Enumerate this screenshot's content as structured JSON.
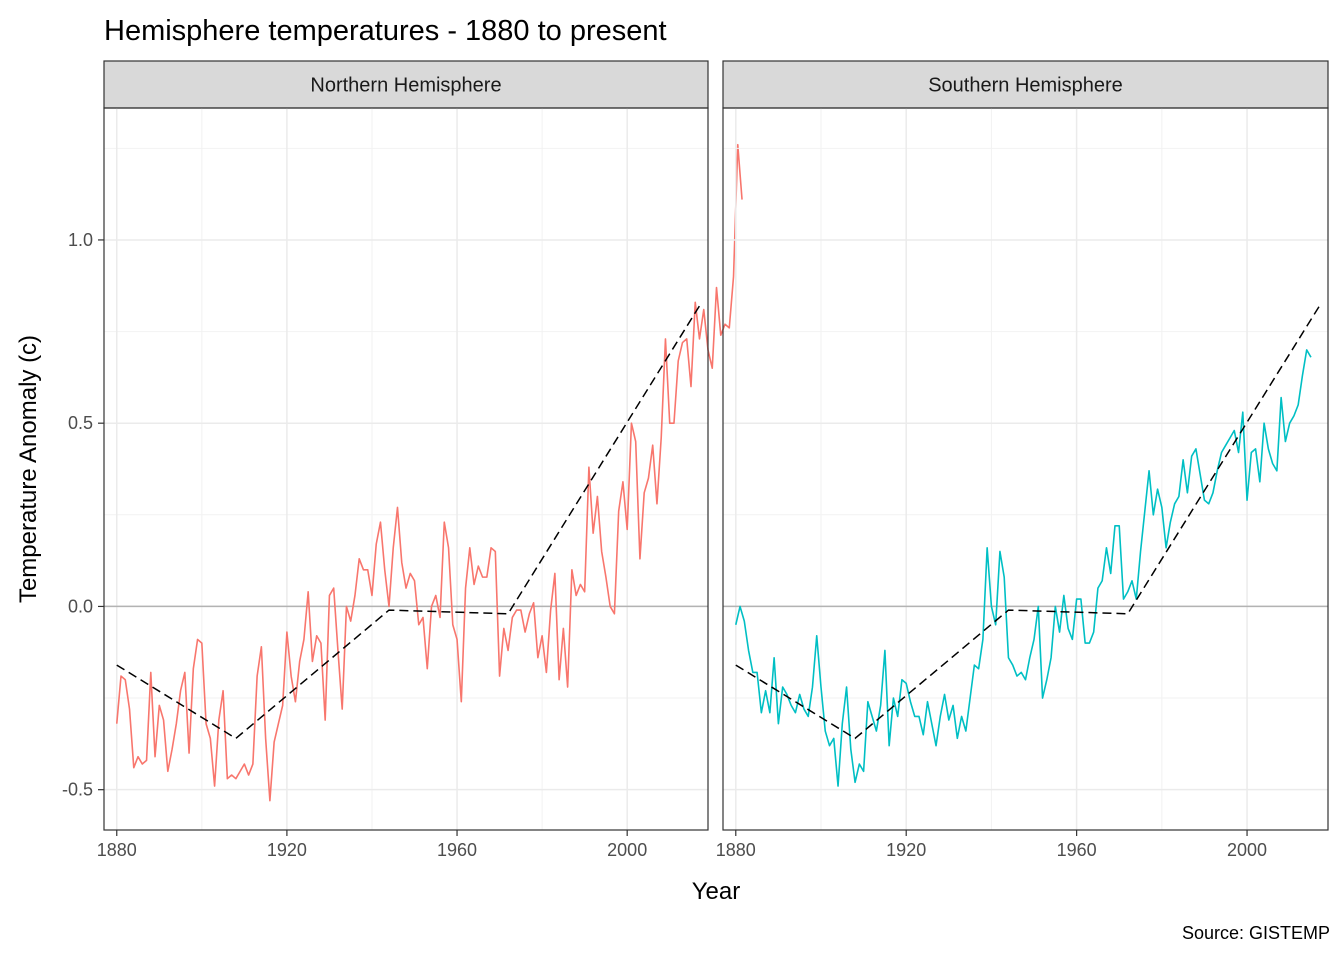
{
  "chart_data": {
    "type": "line",
    "title": "Hemisphere temperatures - 1880 to present",
    "xlabel": "Year",
    "ylabel": "Temperature Anomaly (c)",
    "caption": "Source: GISTEMP",
    "xlim": [
      1877,
      2019
    ],
    "ylim": [
      -0.61,
      1.36
    ],
    "x_ticks": [
      1880,
      1920,
      1960,
      2000
    ],
    "y_ticks": [
      -0.5,
      0.0,
      0.5,
      1.0
    ],
    "y_tick_labels": [
      "-0.5",
      "0.0",
      "0.5",
      "1.0"
    ],
    "grid": true,
    "reference_line_y": 0,
    "legend": "none",
    "facets": [
      {
        "label": "Northern Hemisphere",
        "color": "#F8766D",
        "x_start": 1880,
        "values": [
          -0.32,
          -0.19,
          -0.2,
          -0.28,
          -0.44,
          -0.41,
          -0.43,
          -0.42,
          -0.18,
          -0.41,
          -0.27,
          -0.31,
          -0.45,
          -0.39,
          -0.32,
          -0.23,
          -0.18,
          -0.4,
          -0.17,
          -0.09,
          -0.1,
          -0.32,
          -0.36,
          -0.49,
          -0.31,
          -0.23,
          -0.47,
          -0.46,
          -0.47,
          -0.45,
          -0.43,
          -0.46,
          -0.43,
          -0.19,
          -0.11,
          -0.36,
          -0.53,
          -0.37,
          -0.32,
          -0.27,
          -0.07,
          -0.19,
          -0.26,
          -0.15,
          -0.09,
          0.04,
          -0.15,
          -0.08,
          -0.1,
          -0.31,
          0.03,
          0.05,
          -0.12,
          -0.28,
          0.0,
          -0.04,
          0.03,
          0.13,
          0.1,
          0.1,
          0.03,
          0.17,
          0.23,
          0.1,
          0.0,
          0.16,
          0.27,
          0.12,
          0.05,
          0.09,
          0.07,
          -0.05,
          -0.03,
          -0.17,
          0.0,
          0.03,
          -0.03,
          0.23,
          0.16,
          -0.05,
          -0.09,
          -0.26,
          0.05,
          0.16,
          0.06,
          0.11,
          0.08,
          0.08,
          0.16,
          0.15,
          -0.19,
          -0.06,
          -0.12,
          -0.03,
          -0.01,
          -0.01,
          -0.07,
          -0.02,
          0.01,
          -0.14,
          -0.08,
          -0.18,
          -0.01,
          0.09,
          -0.2,
          -0.06,
          -0.22,
          0.1,
          0.03,
          0.06,
          0.04,
          0.38,
          0.2,
          0.3,
          0.15,
          0.08,
          0.0,
          -0.02,
          0.26,
          0.34,
          0.21,
          0.5,
          0.45,
          0.13,
          0.31,
          0.35,
          0.44,
          0.28,
          0.46,
          0.73,
          0.5,
          0.5,
          0.67,
          0.72,
          0.73,
          0.6,
          0.83,
          0.73,
          0.81,
          0.7,
          0.65,
          0.87,
          0.74,
          0.77,
          0.76,
          0.9,
          1.26,
          1.11
        ],
        "trend": {
          "x": [
            1880,
            1908,
            1944,
            1972,
            2017
          ],
          "y": [
            -0.16,
            -0.36,
            -0.01,
            -0.02,
            0.82
          ]
        }
      },
      {
        "label": "Southern Hemisphere",
        "color": "#00BFC4",
        "x_start": 1880,
        "values": [
          -0.05,
          0.0,
          -0.04,
          -0.12,
          -0.18,
          -0.18,
          -0.29,
          -0.23,
          -0.29,
          -0.14,
          -0.32,
          -0.22,
          -0.24,
          -0.27,
          -0.29,
          -0.24,
          -0.28,
          -0.3,
          -0.22,
          -0.08,
          -0.22,
          -0.34,
          -0.38,
          -0.36,
          -0.49,
          -0.32,
          -0.22,
          -0.39,
          -0.48,
          -0.43,
          -0.45,
          -0.26,
          -0.3,
          -0.34,
          -0.27,
          -0.12,
          -0.38,
          -0.25,
          -0.3,
          -0.2,
          -0.21,
          -0.26,
          -0.3,
          -0.3,
          -0.35,
          -0.26,
          -0.32,
          -0.38,
          -0.3,
          -0.24,
          -0.31,
          -0.27,
          -0.36,
          -0.3,
          -0.34,
          -0.25,
          -0.16,
          -0.17,
          -0.09,
          0.16,
          0.0,
          -0.05,
          0.15,
          0.08,
          -0.14,
          -0.16,
          -0.19,
          -0.18,
          -0.2,
          -0.14,
          -0.09,
          0.0,
          -0.25,
          -0.2,
          -0.14,
          0.0,
          -0.07,
          0.03,
          -0.06,
          -0.09,
          0.02,
          0.02,
          -0.1,
          -0.1,
          -0.07,
          0.05,
          0.07,
          0.16,
          0.09,
          0.22,
          0.22,
          0.02,
          0.04,
          0.07,
          0.02,
          0.15,
          0.26,
          0.37,
          0.25,
          0.32,
          0.27,
          0.16,
          0.23,
          0.28,
          0.3,
          0.4,
          0.31,
          0.41,
          0.43,
          0.36,
          0.29,
          0.28,
          0.31,
          0.37,
          0.42,
          0.44,
          0.46,
          0.48,
          0.42,
          0.53,
          0.29,
          0.42,
          0.43,
          0.34,
          0.5,
          0.43,
          0.39,
          0.37,
          0.57,
          0.45,
          0.5,
          0.52,
          0.55,
          0.63,
          0.7,
          0.68
        ],
        "trend": {
          "x": [
            1880,
            1908,
            1944,
            1972,
            2017
          ],
          "y": [
            -0.16,
            -0.36,
            -0.01,
            -0.02,
            0.82
          ]
        }
      }
    ]
  }
}
